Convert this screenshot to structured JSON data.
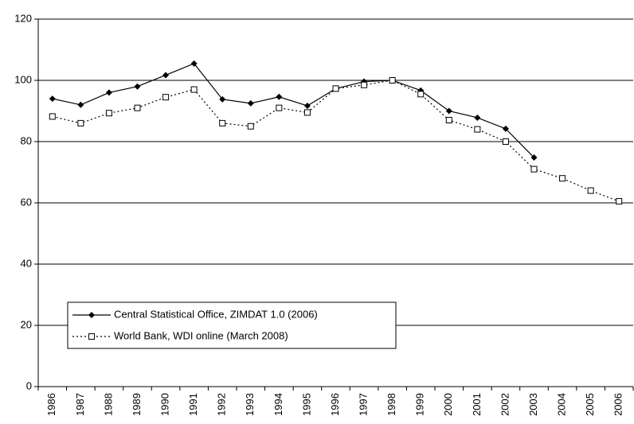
{
  "chart_data": {
    "type": "line",
    "categories": [
      "1986",
      "1987",
      "1988",
      "1989",
      "1990",
      "1991",
      "1992",
      "1993",
      "1994",
      "1995",
      "1996",
      "1997",
      "1998",
      "1999",
      "2000",
      "2001",
      "2002",
      "2003",
      "2004",
      "2005",
      "2006"
    ],
    "series": [
      {
        "name": "Central Statistical Office, ZIMDAT 1.0 (2006)",
        "color": "#000000",
        "line_style": "solid",
        "marker": "diamond",
        "values": [
          94,
          92,
          96,
          98,
          101.7,
          105.5,
          93.8,
          92.5,
          94.6,
          91.7,
          97.3,
          99.6,
          100,
          96.7,
          90,
          87.8,
          84.2,
          74.8,
          null,
          null,
          null
        ]
      },
      {
        "name": "World Bank, WDI online (March 2008)",
        "color": "#000000",
        "line_style": "dotted",
        "marker": "square",
        "values": [
          88.2,
          86,
          89.3,
          91,
          94.5,
          97,
          86,
          85,
          91,
          89.5,
          97.3,
          98.5,
          100,
          95.5,
          87,
          84,
          80,
          71,
          68,
          64,
          60.5
        ]
      }
    ],
    "ylim": [
      0,
      120
    ],
    "yticks": [
      0,
      20,
      40,
      60,
      80,
      100,
      120
    ],
    "grid": true,
    "legend": "lower left"
  }
}
